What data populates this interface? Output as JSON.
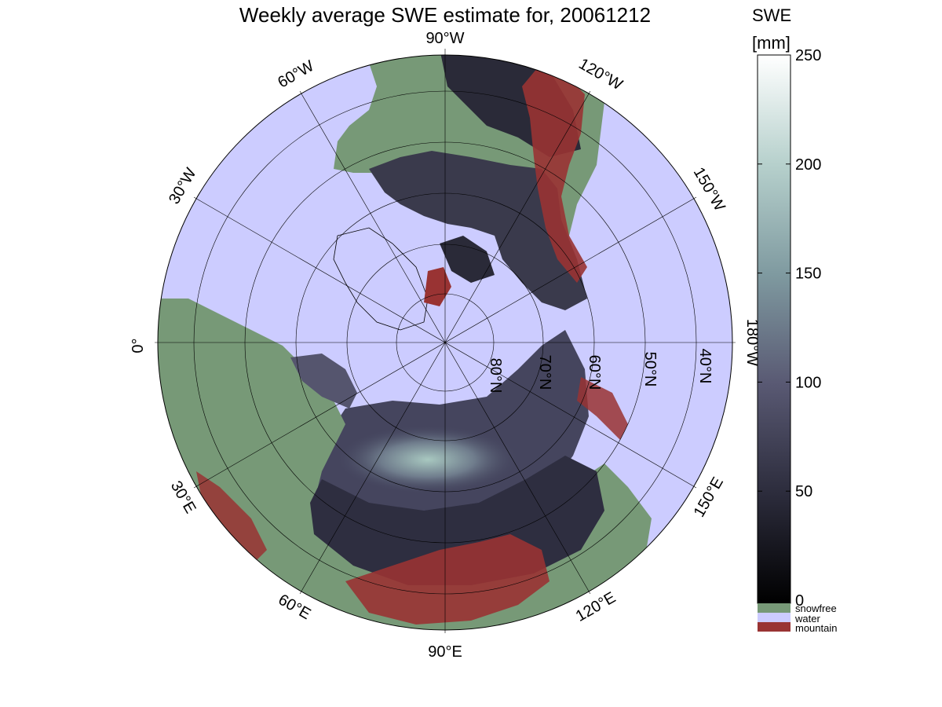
{
  "title": "Weekly average SWE estimate for, 20061212",
  "map": {
    "lon_labels": [
      {
        "key": "90W",
        "text": "90°W"
      },
      {
        "key": "120W",
        "text": "120°W"
      },
      {
        "key": "150W",
        "text": "150°W"
      },
      {
        "key": "180W",
        "text": "180°W"
      },
      {
        "key": "150E",
        "text": "150°E"
      },
      {
        "key": "120E",
        "text": "120°E"
      },
      {
        "key": "90E",
        "text": "90°E"
      },
      {
        "key": "60E",
        "text": "60°E"
      },
      {
        "key": "30E",
        "text": "30°E"
      },
      {
        "key": "0",
        "text": "0°"
      },
      {
        "key": "30W",
        "text": "30°W"
      },
      {
        "key": "60W",
        "text": "60°W"
      }
    ],
    "lat_labels": [
      {
        "key": "80N",
        "text": "80°N"
      },
      {
        "key": "70N",
        "text": "70°N"
      },
      {
        "key": "60N",
        "text": "60°N"
      },
      {
        "key": "50N",
        "text": "50°N"
      },
      {
        "key": "40N",
        "text": "40°N"
      }
    ],
    "colors": {
      "water": "#ccccff",
      "snowfree": "#779977",
      "mountain": "#993333",
      "snow_low": "#2a2a38",
      "snow_mid": "#5f5f7a",
      "snow_high": "#a8c8c0"
    }
  },
  "colorbar": {
    "label_line1": "SWE",
    "label_line2": "[mm]",
    "ticks": [
      "0",
      "50",
      "100",
      "150",
      "200",
      "250"
    ],
    "tick_values": [
      0,
      50,
      100,
      150,
      200,
      250
    ],
    "range": [
      0,
      250
    ],
    "legend": [
      {
        "key": "snowfree",
        "label": "snowfree",
        "color": "#779977"
      },
      {
        "key": "water",
        "label": "water",
        "color": "#ccccff"
      },
      {
        "key": "mountain",
        "label": "mountain",
        "color": "#993333"
      }
    ]
  }
}
